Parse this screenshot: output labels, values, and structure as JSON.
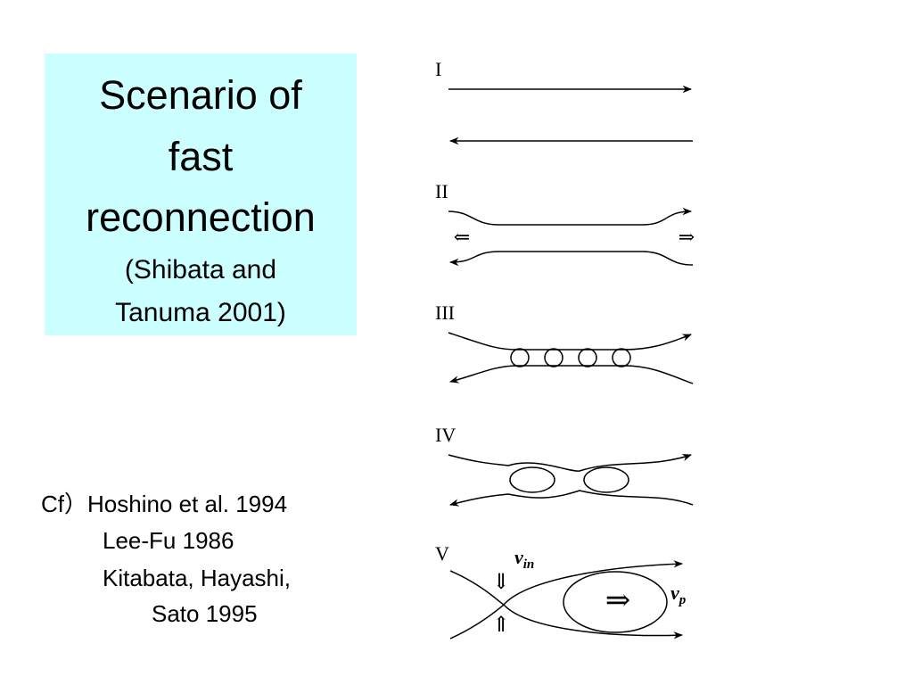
{
  "title": {
    "lines": [
      "Scenario of",
      "fast",
      "reconnection"
    ],
    "subtitle_lines": [
      "(Shibata and",
      "Tanuma 2001)"
    ]
  },
  "references": [
    "Cf）Hoshino et al. 1994",
    "Lee-Fu 1986",
    "Kitabata, Hayashi,",
    "Sato 1995"
  ],
  "diagram": {
    "panels": [
      "I",
      "II",
      "III",
      "IV",
      "V"
    ],
    "labels": [
      {
        "symbol": "v",
        "subscript": "in"
      },
      {
        "symbol": "v",
        "subscript": "p"
      }
    ]
  }
}
